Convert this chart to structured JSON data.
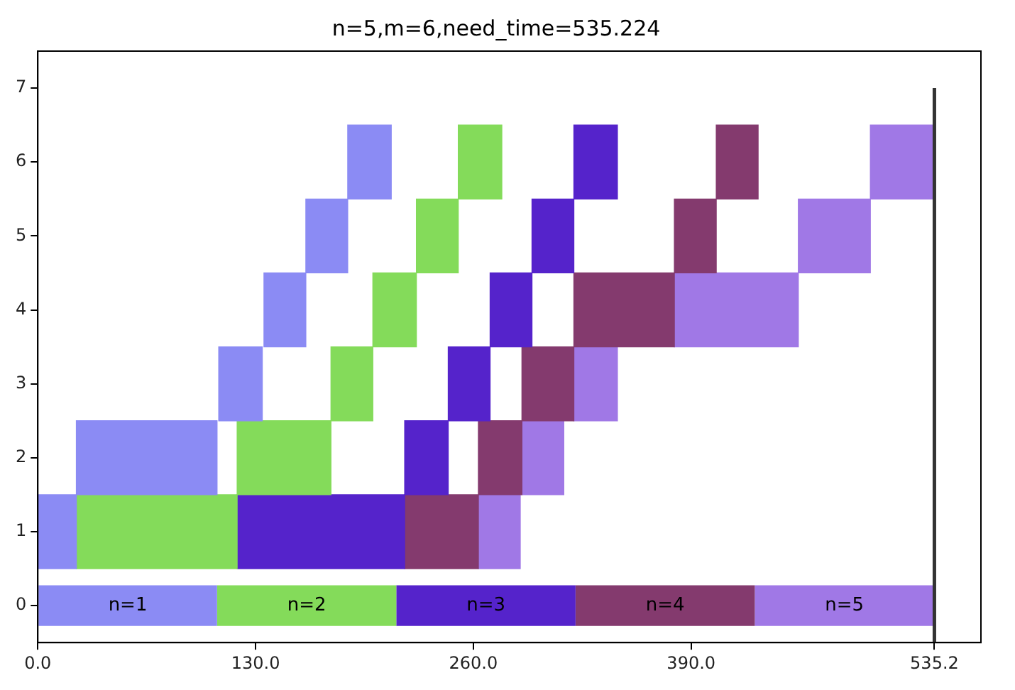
{
  "chart_data": {
    "type": "bar",
    "orientation": "horizontal",
    "title": "n=5,m=6,need_time=535.224",
    "categories": [
      "7",
      "6",
      "5",
      "4",
      "3",
      "2",
      "1",
      "0"
    ],
    "series": [
      {
        "name": "n=1",
        "color": "#8b8bf4",
        "base": [
          null,
          185,
          160,
          135,
          108,
          23,
          0,
          0
        ],
        "values": [
          null,
          26,
          25,
          25,
          26,
          84,
          23,
          107
        ]
      },
      {
        "name": "n=2",
        "color": "#84db5a",
        "base": [
          null,
          251,
          226,
          200,
          175,
          119,
          23,
          107
        ],
        "values": [
          null,
          26,
          25,
          26,
          25,
          56,
          96,
          107
        ]
      },
      {
        "name": "n=3",
        "color": "#5523cb",
        "base": [
          null,
          320,
          295,
          270,
          245,
          219,
          119,
          214
        ],
        "values": [
          null,
          26,
          25,
          25,
          25,
          26,
          100,
          107
        ]
      },
      {
        "name": "n=4",
        "color": "#843a6e",
        "base": [
          null,
          405,
          380,
          320,
          289,
          263,
          219,
          321
        ],
        "values": [
          null,
          25,
          25,
          60,
          31,
          26,
          44,
          107
        ]
      },
      {
        "name": "n=5",
        "color": "#a078e6",
        "base": [
          null,
          497,
          454,
          380,
          320,
          289,
          263,
          428
        ],
        "values": [
          null,
          38,
          43,
          74,
          26,
          25,
          25,
          107
        ]
      }
    ],
    "xlim": [
      0,
      563
    ],
    "xticks": [
      {
        "value": 0,
        "label": "0.0"
      },
      {
        "value": 130,
        "label": "130.0"
      },
      {
        "value": 260,
        "label": "260.0"
      },
      {
        "value": 390,
        "label": "390.0"
      },
      {
        "value": 535.224,
        "label": "535.2"
      }
    ],
    "ref_lines": [
      {
        "axis": "x",
        "value": 535.224,
        "color": "#333333"
      }
    ],
    "grid": false,
    "legend": false
  }
}
